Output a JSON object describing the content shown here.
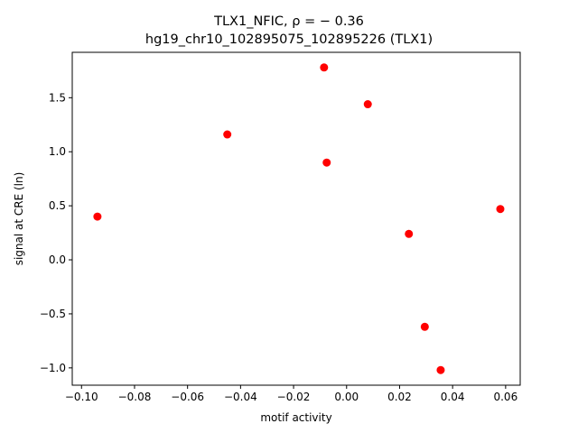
{
  "chart_data": {
    "type": "scatter",
    "title_line1": "TLX1_NFIC, ρ = − 0.36",
    "title_line2": "hg19_chr10_102895075_102895226 (TLX1)",
    "xlabel": "motif activity",
    "ylabel": "signal at CRE (ln)",
    "xlim": [
      -0.1035,
      0.0655
    ],
    "ylim": [
      -1.16,
      1.92
    ],
    "grid": false,
    "point_color": "#ff0000",
    "x_ticks": [
      -0.1,
      -0.08,
      -0.06,
      -0.04,
      -0.02,
      0.0,
      0.02,
      0.04,
      0.06
    ],
    "x_tick_labels": [
      "−0.10",
      "−0.08",
      "−0.06",
      "−0.04",
      "−0.02",
      "0.00",
      "0.02",
      "0.04",
      "0.06"
    ],
    "y_ticks": [
      -1.0,
      -0.5,
      0.0,
      0.5,
      1.0,
      1.5
    ],
    "y_tick_labels": [
      "−1.0",
      "−0.5",
      "0.0",
      "0.5",
      "1.0",
      "1.5"
    ],
    "points": [
      {
        "x": -0.094,
        "y": 0.4
      },
      {
        "x": -0.045,
        "y": 1.16
      },
      {
        "x": -0.0085,
        "y": 1.78
      },
      {
        "x": -0.0075,
        "y": 0.9
      },
      {
        "x": 0.008,
        "y": 1.44
      },
      {
        "x": 0.0235,
        "y": 0.24
      },
      {
        "x": 0.0295,
        "y": -0.62
      },
      {
        "x": 0.0355,
        "y": -1.02
      },
      {
        "x": 0.058,
        "y": 0.47
      }
    ]
  }
}
